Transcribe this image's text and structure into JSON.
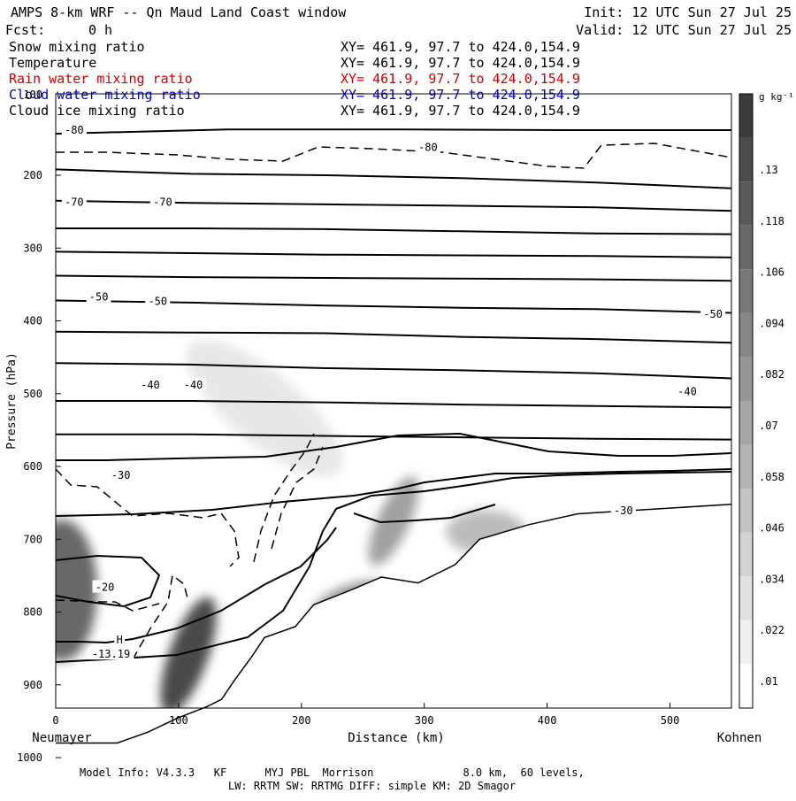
{
  "header": {
    "title": "AMPS 8-km WRF -- Qn Maud Land Coast window",
    "init": "Init: 12 UTC Sun 27 Jul 25",
    "fcst_label": "Fcst:",
    "fcst_value": "0 h",
    "valid": "Valid: 12 UTC Sun 27 Jul 25"
  },
  "fields": [
    {
      "name": "Snow mixing ratio",
      "xy": "XY= 461.9, 97.7 to 424.0,154.9",
      "color": "#000000"
    },
    {
      "name": "Temperature",
      "xy": "XY= 461.9, 97.7 to 424.0,154.9",
      "color": "#000000"
    },
    {
      "name": "Rain water mixing ratio",
      "xy": "XY= 461.9, 97.7 to 424.0,154.9",
      "color": "#cc0000"
    },
    {
      "name": "Cloud water mixing ratio",
      "xy": "XY= 461.9, 97.7 to 424.0,154.9",
      "color": "#0000cc"
    },
    {
      "name": "Cloud ice mixing ratio",
      "xy": "XY= 461.9, 97.7 to 424.0,154.9",
      "color": "#000000"
    }
  ],
  "chart_data": {
    "type": "contour",
    "xlabel": "Distance (km)",
    "ylabel": "Pressure (hPa)",
    "xlim": [
      0,
      550
    ],
    "ylim": [
      1050,
      150
    ],
    "x_ticks": [
      0,
      100,
      200,
      300,
      400,
      500
    ],
    "y_ticks": [
      200,
      300,
      400,
      500,
      600,
      700,
      800,
      900,
      1000
    ],
    "top_tick_label": "100",
    "left_endpoint": "Neumayer",
    "right_endpoint": "Kohnen",
    "colorbar": {
      "unit": "g kg⁻¹",
      "labels": [
        ".13",
        ".118",
        ".106",
        ".094",
        ".082",
        ".07",
        ".058",
        ".046",
        ".034",
        ".022",
        ".01"
      ]
    },
    "temperature_labels": [
      {
        "text": "-80",
        "x": 15,
        "p": 138
      },
      {
        "text": "-80",
        "x": 303,
        "p": 162
      },
      {
        "text": "-70",
        "x": 15,
        "p": 237
      },
      {
        "text": "-70",
        "x": 87,
        "p": 237
      },
      {
        "text": "-50",
        "x": 35,
        "p": 367
      },
      {
        "text": "-50",
        "x": 83,
        "p": 373
      },
      {
        "text": "-50",
        "x": 535,
        "p": 391
      },
      {
        "text": "-40",
        "x": 77,
        "p": 488
      },
      {
        "text": "-40",
        "x": 112,
        "p": 488
      },
      {
        "text": "-40",
        "x": 514,
        "p": 497
      },
      {
        "text": "-30",
        "x": 53,
        "p": 612
      },
      {
        "text": "-30",
        "x": 462,
        "p": 661
      },
      {
        "text": "-20",
        "x": 40,
        "p": 766
      },
      {
        "text": "H",
        "x": 52,
        "p": 838
      },
      {
        "text": "-13.19",
        "x": 45,
        "p": 858
      }
    ],
    "temperature_contours_p": [
      [
        143,
        137,
        137,
        138,
        138
      ],
      [
        192,
        198,
        200,
        204,
        210,
        218
      ],
      [
        235,
        238,
        240,
        242,
        244,
        249
      ],
      [
        273,
        273,
        274,
        277,
        280,
        281
      ],
      [
        305,
        307,
        309,
        310,
        311,
        313
      ],
      [
        338,
        340,
        341,
        342,
        343,
        345
      ],
      [
        372,
        375,
        379,
        382,
        384,
        389
      ],
      [
        415,
        416,
        417,
        422,
        425,
        430
      ],
      [
        458,
        460,
        465,
        468,
        472,
        479
      ],
      [
        510,
        510,
        512,
        515,
        517,
        519
      ],
      [
        556,
        556,
        558,
        560,
        562,
        563
      ]
    ],
    "terrain": {
      "x": [
        0,
        50,
        75,
        100,
        123,
        135,
        145,
        160,
        170,
        195,
        210,
        240,
        265,
        295,
        325,
        345,
        385,
        425,
        550
      ],
      "p": [
        980,
        980,
        965,
        945,
        930,
        920,
        895,
        860,
        835,
        820,
        790,
        770,
        752,
        760,
        735,
        700,
        680,
        665,
        652
      ]
    },
    "snow_shading": [
      {
        "x": 5,
        "p": 770,
        "level": 0.1
      },
      {
        "x": 108,
        "p": 860,
        "level": 0.12
      },
      {
        "x": 240,
        "p": 785,
        "level": 0.07
      },
      {
        "x": 275,
        "p": 675,
        "level": 0.06
      },
      {
        "x": 350,
        "p": 690,
        "level": 0.04
      },
      {
        "x": 170,
        "p": 520,
        "level": 0.01
      }
    ]
  }
}
